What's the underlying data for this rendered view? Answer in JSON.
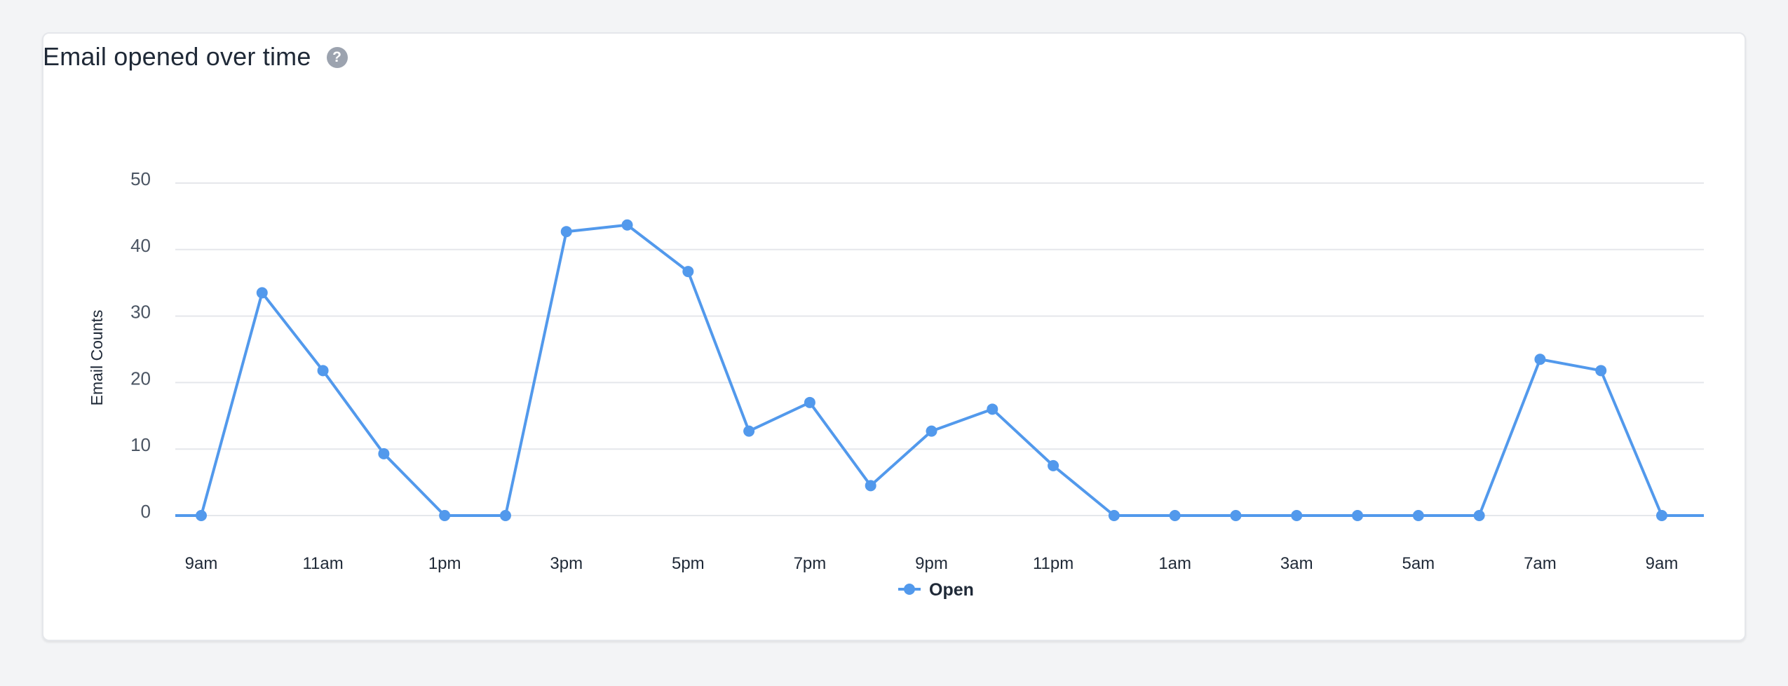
{
  "card": {
    "title": "Email opened over time",
    "help_icon": "question-circle-icon"
  },
  "colors": {
    "series": "#5299ec",
    "grid": "#e5e7eb",
    "axis_text": "#4b5563",
    "title": "#1f2937",
    "help_icon_bg": "#9ca3af"
  },
  "chart_data": {
    "type": "line",
    "ylabel": "Email Counts",
    "xlabel": "",
    "ylim": [
      0,
      50
    ],
    "yticks": [
      0,
      10,
      20,
      30,
      40,
      50
    ],
    "grid": true,
    "legend_position": "bottom-center",
    "x_tick_labels": [
      "9am",
      "11am",
      "1pm",
      "3pm",
      "5pm",
      "7pm",
      "9pm",
      "11pm",
      "1am",
      "3am",
      "5am",
      "7am",
      "9am"
    ],
    "x": [
      "9am",
      "10am",
      "11am",
      "12pm",
      "1pm",
      "2pm",
      "3pm",
      "4pm",
      "5pm",
      "6pm",
      "7pm",
      "8pm",
      "9pm",
      "10pm",
      "11pm",
      "12am",
      "1am",
      "2am",
      "3am",
      "4am",
      "5am",
      "6am",
      "7am",
      "8am",
      "9am"
    ],
    "series": [
      {
        "name": "Open",
        "values": [
          0,
          33.5,
          21.8,
          9.3,
          0,
          0,
          42.7,
          43.7,
          36.7,
          12.7,
          17,
          4.5,
          12.7,
          16,
          7.5,
          0,
          0,
          0,
          0,
          0,
          0,
          0,
          23.5,
          21.8,
          0
        ]
      }
    ]
  }
}
